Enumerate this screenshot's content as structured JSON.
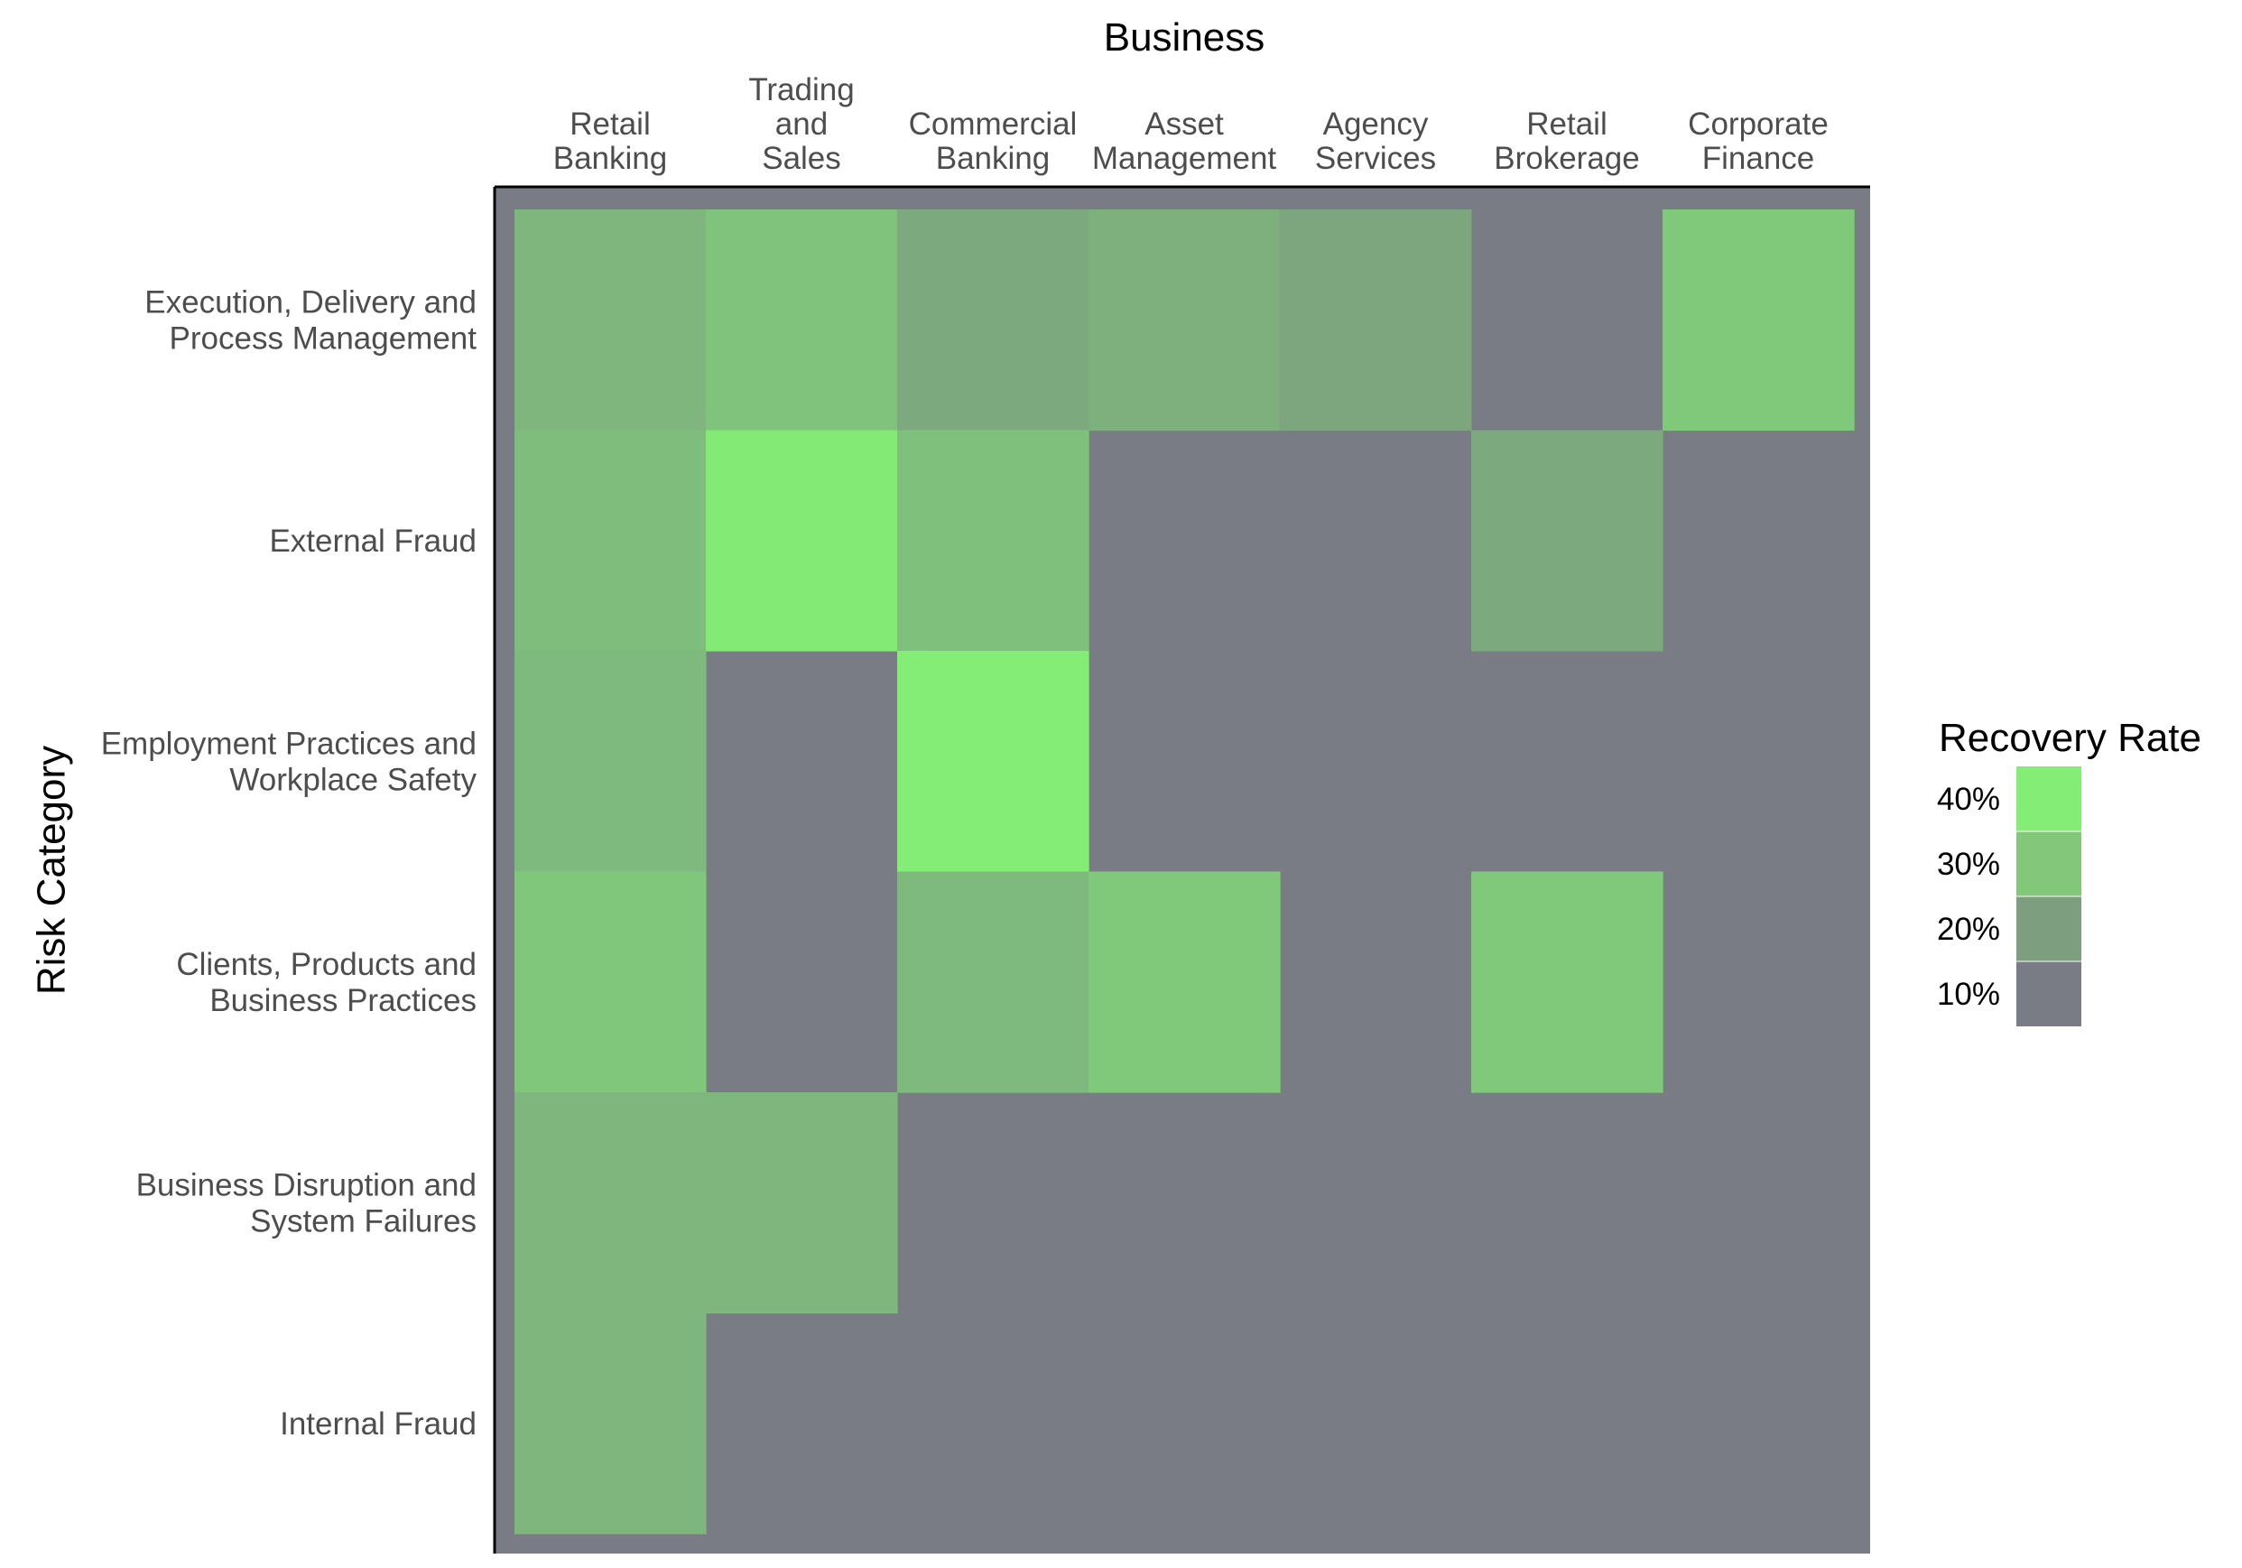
{
  "chart_data": {
    "type": "heatmap",
    "xlabel": "Business",
    "ylabel": "Risk Category",
    "x_categories": [
      [
        "Retail",
        "Banking"
      ],
      [
        "Trading",
        "and",
        "Sales"
      ],
      [
        "Commercial",
        "Banking"
      ],
      [
        "Asset",
        "Management"
      ],
      [
        "Agency",
        "Services"
      ],
      [
        "Retail",
        "Brokerage"
      ],
      [
        "Corporate",
        "Finance"
      ]
    ],
    "y_categories": [
      [
        "Execution, Delivery and",
        "Process Management"
      ],
      [
        "External Fraud"
      ],
      [
        "Employment Practices and",
        "Workplace Safety"
      ],
      [
        "Clients, Products and",
        "Business Practices"
      ],
      [
        "Business Disruption and",
        "System Failures"
      ],
      [
        "Internal Fraud"
      ]
    ],
    "values": [
      [
        0.28,
        0.32,
        0.24,
        0.26,
        0.23,
        null,
        0.34
      ],
      [
        0.3,
        0.44,
        0.31,
        null,
        null,
        0.24,
        null
      ],
      [
        0.29,
        null,
        0.45,
        null,
        null,
        null,
        null
      ],
      [
        0.33,
        null,
        0.29,
        0.34,
        null,
        0.34,
        null
      ],
      [
        0.28,
        0.28,
        null,
        null,
        null,
        null,
        null
      ],
      [
        0.28,
        null,
        null,
        null,
        null,
        null,
        null
      ]
    ],
    "legend": {
      "title": "Recovery Rate",
      "position": "right",
      "breaks": [
        "40%",
        "30%",
        "20%",
        "10%"
      ],
      "colors": [
        "#83ed76",
        "#82c77a",
        "#7e9e80",
        "#797c85"
      ]
    },
    "colors": {
      "low": "#797c85",
      "high": "#83ed76",
      "background": "#797c85",
      "axis_line": "#000000"
    },
    "scale": {
      "min": 0.1,
      "max": 0.45
    },
    "grid": false
  }
}
